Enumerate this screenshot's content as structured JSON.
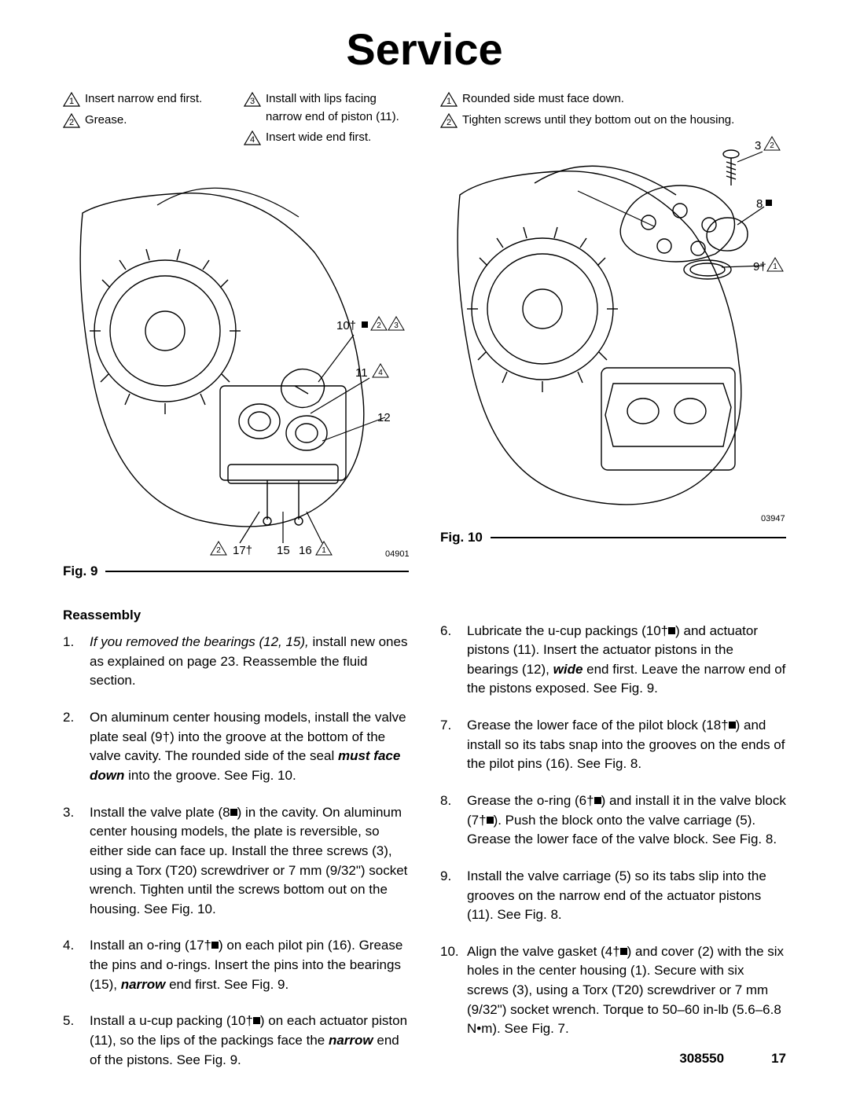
{
  "title": "Service",
  "figures": {
    "fig9": {
      "label": "Fig. 9",
      "img_num": "04901",
      "notes": [
        {
          "n": "1",
          "text": "Insert narrow end first."
        },
        {
          "n": "2",
          "text": "Grease."
        },
        {
          "n": "3",
          "text": "Install with lips facing narrow end of piston (11)."
        },
        {
          "n": "4",
          "text": "Insert wide end first."
        }
      ],
      "callouts": {
        "c10": "10†",
        "c11": "11",
        "c12": "12",
        "c17": "17†",
        "c15": "15",
        "c16": "16"
      }
    },
    "fig10": {
      "label": "Fig. 10",
      "img_num": "03947",
      "notes": [
        {
          "n": "1",
          "text": "Rounded side must face down."
        },
        {
          "n": "2",
          "text": "Tighten screws until they bottom out on the housing."
        }
      ],
      "callouts": {
        "c3": "3",
        "c8": "8",
        "c9": "9†"
      }
    }
  },
  "reassembly_head": "Reassembly",
  "steps_left": [
    {
      "n": "1.",
      "html": "<em class='manual'>If you removed the bearings (12, 15),</em> install new ones as explained on page 23. Reassemble the fluid section."
    },
    {
      "n": "2.",
      "html": "On aluminum center housing models, install the valve plate seal (9†) into the groove at the bottom of the valve cavity. The rounded side of the seal <strong class='manual'>must face down</strong> into the groove. See Fig. 10."
    },
    {
      "n": "3.",
      "html": "Install the valve plate (8<span class='blk'></span>) in the cavity. On aluminum center housing models, the plate is reversible, so either side can face up. Install the three screws (3), using a Torx (T20) screwdriver or 7 mm (9/32\") socket wrench. Tighten until the screws bottom out on the housing. See Fig. 10."
    },
    {
      "n": "4.",
      "html": "Install an o-ring (17†<span class='blk'></span>) on each pilot pin (16). Grease the pins and o-rings. Insert the pins into the bearings (15), <strong class='manual'>narrow</strong> end first. See Fig. 9."
    },
    {
      "n": "5.",
      "html": "Install a u-cup packing (10†<span class='blk'></span>) on each actuator piston (11), so the lips of the packings face the <strong class='manual'>narrow</strong> end of the pistons. See Fig. 9."
    }
  ],
  "steps_right": [
    {
      "n": "6.",
      "html": "Lubricate the u-cup packings (10†<span class='blk'></span>) and actuator pistons (11). Insert the actuator pistons in the bearings (12), <strong class='manual'>wide</strong> end first. Leave the narrow end of the pistons exposed. See Fig. 9."
    },
    {
      "n": "7.",
      "html": "Grease the lower face of the pilot block (18†<span class='blk'></span>) and install so its tabs snap into the grooves on the ends of the pilot pins (16). See Fig. 8."
    },
    {
      "n": "8.",
      "html": "Grease the o-ring (6†<span class='blk'></span>) and install it in the valve block (7†<span class='blk'></span>). Push the block onto the valve carriage (5). Grease the lower face of the valve block. See Fig. 8."
    },
    {
      "n": "9.",
      "html": "Install the valve carriage (5) so its tabs slip into the grooves on the narrow end of the actuator pistons (11). See Fig. 8."
    },
    {
      "n": "10.",
      "html": "Align the valve gasket (4†<span class='blk'></span>) and cover (2) with the six holes in the center housing (1). Secure with six screws (3), using a Torx (T20) screwdriver or 7 mm (9/32\") socket wrench. Torque to 50–60 in-lb (5.6–6.8 N•m). See Fig. 7."
    }
  ],
  "footer": {
    "doc": "308550",
    "page": "17"
  }
}
